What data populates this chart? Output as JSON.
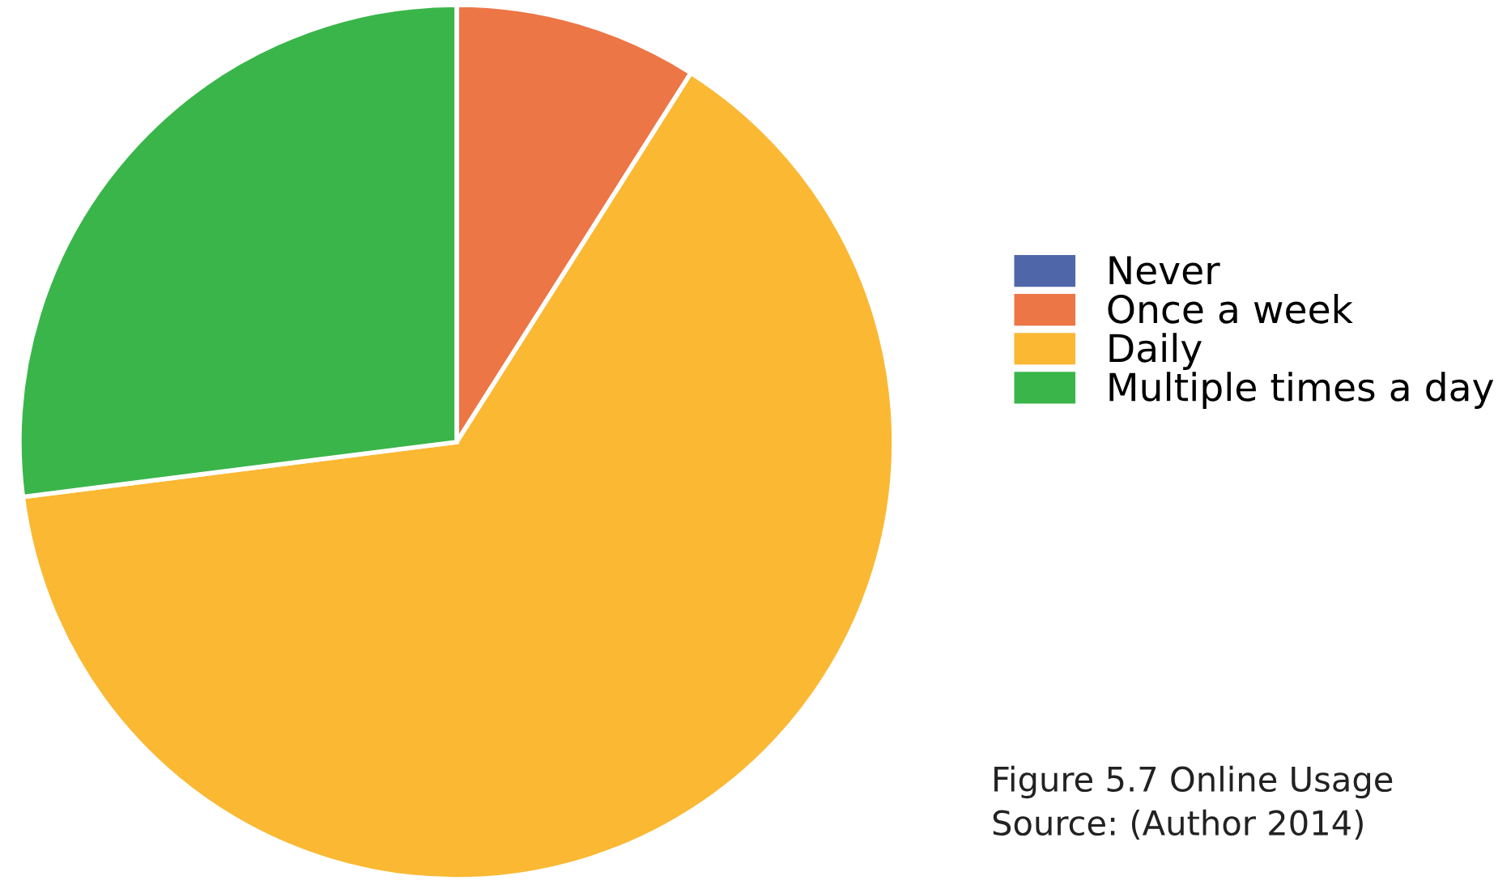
{
  "chart_data": {
    "type": "pie",
    "categories": [
      "Never",
      "Once a week",
      "Daily",
      "Multiple times a day"
    ],
    "values": [
      0,
      9,
      64,
      27
    ],
    "colors": [
      "#4f67a8",
      "#ec7646",
      "#fbb833",
      "#3ab54a"
    ],
    "legend": "right",
    "annotations": [
      "Figure 5.7 Online Usage",
      "Source: (Author 2014)"
    ]
  }
}
